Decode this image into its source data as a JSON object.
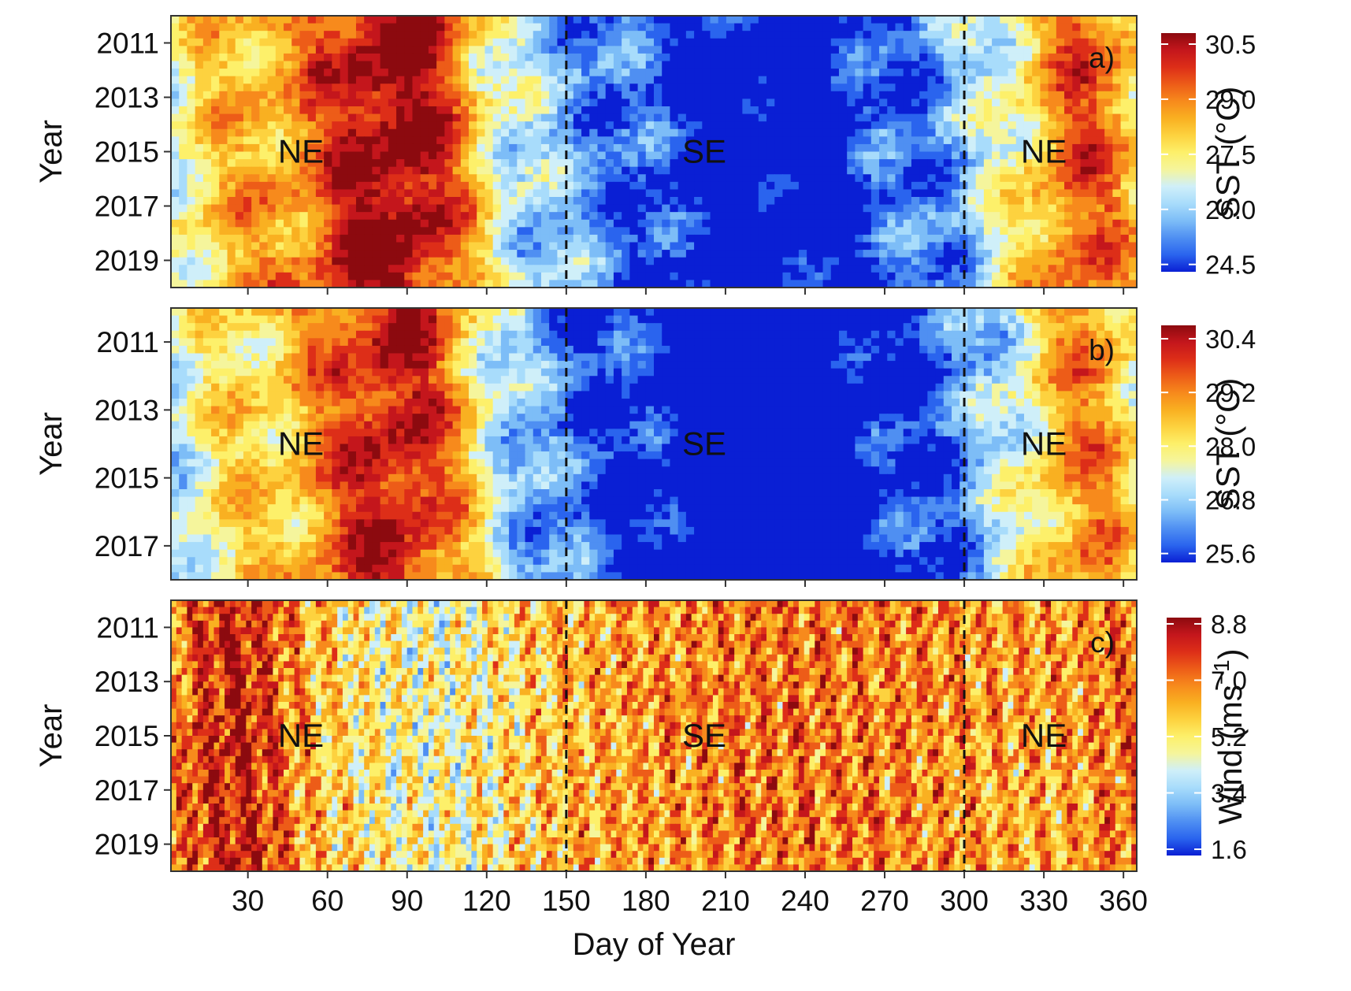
{
  "chart_data": [
    {
      "panel": "a)",
      "type": "heatmap",
      "ylabel": "Year",
      "y_ticks": [
        "2011",
        "2013",
        "2015",
        "2017",
        "2019"
      ],
      "ylim": [
        2010,
        2020
      ],
      "xlim": [
        1,
        365
      ],
      "colorbar": {
        "title": "SST (°C)",
        "ticks": [
          24.5,
          26.0,
          27.5,
          29.0,
          30.5
        ],
        "ticks_text": [
          "24.5",
          "26.0",
          "27.5",
          "29.0",
          "30.5"
        ],
        "range": [
          24.3,
          30.8
        ]
      },
      "season_labels": [
        {
          "label": "NE",
          "day": 50
        },
        {
          "label": "SE",
          "day": 202
        },
        {
          "label": "NE",
          "day": 330
        }
      ],
      "boundaries": [
        150,
        300
      ]
    },
    {
      "panel": "b)",
      "type": "heatmap",
      "ylabel": "Year",
      "y_ticks": [
        "2011",
        "2013",
        "2015",
        "2017"
      ],
      "ylim": [
        2010,
        2018
      ],
      "xlim": [
        1,
        365
      ],
      "colorbar": {
        "title": "SST (°C)",
        "ticks": [
          25.6,
          26.8,
          28.0,
          29.2,
          30.4
        ],
        "ticks_text": [
          "25.6",
          "26.8",
          "28.0",
          "29.2",
          "30.4"
        ],
        "range": [
          25.4,
          30.7
        ]
      },
      "season_labels": [
        {
          "label": "NE",
          "day": 50
        },
        {
          "label": "SE",
          "day": 202
        },
        {
          "label": "NE",
          "day": 330
        }
      ],
      "boundaries": [
        150,
        300
      ]
    },
    {
      "panel": "c)",
      "type": "heatmap",
      "ylabel": "Year",
      "y_ticks": [
        "2011",
        "2013",
        "2015",
        "2017",
        "2019"
      ],
      "ylim": [
        2010,
        2020
      ],
      "xlim": [
        1,
        365
      ],
      "xlabel": "Day of Year",
      "x_ticks": [
        30,
        60,
        90,
        120,
        150,
        180,
        210,
        240,
        270,
        300,
        330,
        360
      ],
      "colorbar": {
        "title": "Wind (ms",
        "title_sup": "−1",
        "title_end": ")",
        "ticks": [
          1.6,
          3.4,
          5.2,
          7.0,
          8.8
        ],
        "ticks_text": [
          "1.6",
          "3.4",
          "5.2",
          "7.0",
          "8.8"
        ],
        "range": [
          1.4,
          9.0
        ]
      },
      "season_labels": [
        {
          "label": "NE",
          "day": 50
        },
        {
          "label": "SE",
          "day": 202
        },
        {
          "label": "NE",
          "day": 330
        }
      ],
      "boundaries": [
        150,
        300
      ]
    }
  ],
  "colorscale": [
    "#0a1fd4",
    "#2a64ee",
    "#4f8ff2",
    "#7dbdf7",
    "#a8dcfb",
    "#cfeff9",
    "#f5f59c",
    "#fdf06a",
    "#fdd23f",
    "#f9b021",
    "#f78a1c",
    "#ed5c18",
    "#dd2e18",
    "#c4161c",
    "#8c0a0f"
  ]
}
